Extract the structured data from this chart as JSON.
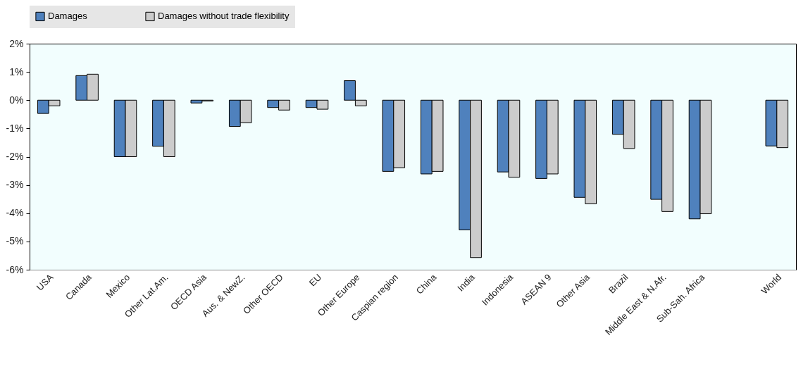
{
  "chart_data": {
    "type": "bar",
    "categories": [
      "USA",
      "Canada",
      "Mexico",
      "Other Lat.Am.",
      "OECD Asia",
      "Aus. & NewZ.",
      "Other OECD",
      "EU",
      "Other Europe",
      "Caspian region",
      "China",
      "India",
      "Indonesia",
      "ASEAN 9",
      "Other Asia",
      "Brazil",
      "Middle East & N.Afr.",
      "Sub-Sah. Africa",
      null,
      "World"
    ],
    "series": [
      {
        "name": "Damages",
        "color": "#4f81bd",
        "values": [
          -0.47,
          0.87,
          -2.0,
          -1.63,
          -0.1,
          -0.93,
          -0.26,
          -0.26,
          0.69,
          -2.52,
          -2.61,
          -4.59,
          -2.54,
          -2.77,
          -3.44,
          -1.21,
          -3.51,
          -4.2,
          null,
          -1.62
        ]
      },
      {
        "name": "Damages without trade flexibility",
        "color": "#cccccc",
        "values": [
          -0.2,
          0.92,
          -2.0,
          -2.0,
          -0.03,
          -0.8,
          -0.35,
          -0.32,
          -0.2,
          -2.39,
          -2.52,
          -5.57,
          -2.73,
          -2.61,
          -3.67,
          -1.71,
          -3.94,
          -4.02,
          null,
          -1.68
        ]
      }
    ],
    "ylim": [
      -6,
      2
    ],
    "yticks": [
      {
        "value": 2,
        "label": "2%"
      },
      {
        "value": 1,
        "label": "1%"
      },
      {
        "value": 0,
        "label": "0%"
      },
      {
        "value": -1,
        "label": "-1%"
      },
      {
        "value": -2,
        "label": "-2%"
      },
      {
        "value": -3,
        "label": "-3%"
      },
      {
        "value": -4,
        "label": "-4%"
      },
      {
        "value": -5,
        "label": "-5%"
      },
      {
        "value": -6,
        "label": "-6%"
      }
    ],
    "grid": false,
    "legend": "top"
  }
}
